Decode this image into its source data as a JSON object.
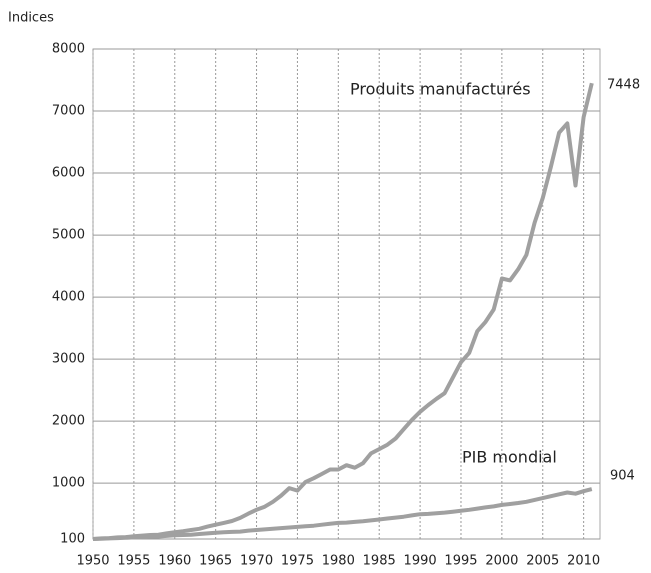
{
  "chart_data": {
    "type": "line",
    "y_axis_label": "Indices",
    "x": [
      1950,
      1951,
      1952,
      1953,
      1954,
      1955,
      1956,
      1957,
      1958,
      1959,
      1960,
      1961,
      1962,
      1963,
      1964,
      1965,
      1966,
      1967,
      1968,
      1969,
      1970,
      1971,
      1972,
      1973,
      1974,
      1975,
      1976,
      1977,
      1978,
      1979,
      1980,
      1981,
      1982,
      1983,
      1984,
      1985,
      1986,
      1987,
      1988,
      1989,
      1990,
      1991,
      1992,
      1993,
      1994,
      1995,
      1996,
      1997,
      1998,
      1999,
      2000,
      2001,
      2002,
      2003,
      2004,
      2005,
      2006,
      2007,
      2008,
      2009,
      2010,
      2011
    ],
    "series": [
      {
        "name": "Produits manufacturés",
        "color": "#a0a0a0",
        "values": [
          100,
          110,
          115,
          125,
          130,
          145,
          155,
          165,
          170,
          190,
          210,
          225,
          245,
          265,
          300,
          330,
          360,
          390,
          440,
          510,
          570,
          620,
          700,
          800,
          920,
          880,
          1020,
          1080,
          1150,
          1220,
          1220,
          1290,
          1250,
          1320,
          1480,
          1550,
          1620,
          1720,
          1870,
          2020,
          2150,
          2260,
          2360,
          2450,
          2700,
          2950,
          3100,
          3450,
          3600,
          3800,
          4300,
          4270,
          4450,
          4680,
          5200,
          5600,
          6100,
          6650,
          6800,
          5800,
          6900,
          7448
        ]
      },
      {
        "name": "PIB mondial",
        "color": "#a0a0a0",
        "values": [
          100,
          105,
          110,
          115,
          120,
          125,
          130,
          135,
          140,
          150,
          160,
          165,
          170,
          180,
          190,
          200,
          210,
          215,
          220,
          235,
          245,
          255,
          265,
          275,
          285,
          295,
          305,
          315,
          330,
          345,
          360,
          365,
          375,
          385,
          400,
          415,
          430,
          445,
          460,
          480,
          500,
          505,
          515,
          525,
          540,
          555,
          570,
          590,
          610,
          625,
          650,
          665,
          680,
          700,
          730,
          760,
          790,
          820,
          850,
          830,
          870,
          904
        ]
      }
    ],
    "xlim": [
      1950,
      2012
    ],
    "xticks": [
      1950,
      1955,
      1960,
      1965,
      1970,
      1975,
      1980,
      1985,
      1990,
      1995,
      2000,
      2005,
      2010
    ],
    "ylim": [
      100,
      8000
    ],
    "yticks": [
      100,
      1000,
      2000,
      3000,
      4000,
      5000,
      6000,
      7000,
      8000
    ],
    "grid": true
  }
}
